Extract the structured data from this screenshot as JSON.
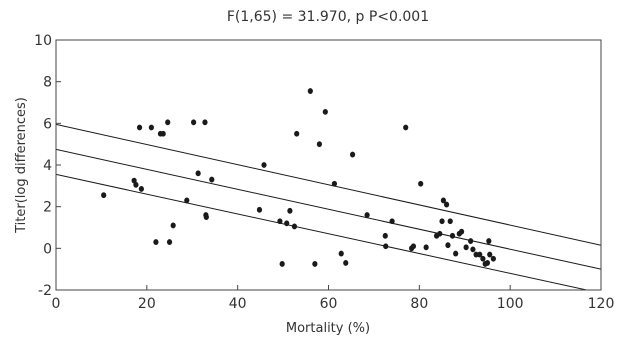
{
  "chart_data": {
    "type": "scatter",
    "title": "F(1,65) = 31.970, p P<0.001",
    "xlabel": "Mortality (%)",
    "ylabel": "Titer(log differences)",
    "xlim": [
      0,
      120
    ],
    "ylim": [
      -2,
      10
    ],
    "xticks": [
      0,
      20,
      40,
      60,
      80,
      100,
      120
    ],
    "yticks": [
      -2,
      0,
      2,
      4,
      6,
      8,
      10
    ],
    "grid": false,
    "legend": "none",
    "colors": {
      "points": "#1a1a1a",
      "lines": "#1a1a1a",
      "axes": "#444444"
    },
    "points": [
      [
        10.5,
        2.55
      ],
      [
        17.2,
        3.25
      ],
      [
        17.6,
        3.05
      ],
      [
        18.4,
        5.8
      ],
      [
        18.8,
        2.85
      ],
      [
        21.0,
        5.8
      ],
      [
        22.0,
        0.3
      ],
      [
        23.0,
        5.5
      ],
      [
        23.6,
        5.5
      ],
      [
        24.6,
        6.05
      ],
      [
        25.0,
        0.3
      ],
      [
        25.8,
        1.1
      ],
      [
        28.8,
        2.3
      ],
      [
        30.3,
        6.05
      ],
      [
        31.3,
        3.6
      ],
      [
        32.8,
        6.05
      ],
      [
        33.0,
        1.6
      ],
      [
        33.1,
        1.5
      ],
      [
        34.3,
        3.3
      ],
      [
        44.8,
        1.85
      ],
      [
        45.8,
        4.0
      ],
      [
        49.3,
        1.3
      ],
      [
        49.8,
        -0.75
      ],
      [
        50.8,
        1.2
      ],
      [
        51.5,
        1.8
      ],
      [
        52.5,
        1.05
      ],
      [
        53.0,
        5.5
      ],
      [
        56.0,
        7.55
      ],
      [
        57.0,
        -0.75
      ],
      [
        58.0,
        5.0
      ],
      [
        59.3,
        6.55
      ],
      [
        61.3,
        3.1
      ],
      [
        62.8,
        -0.25
      ],
      [
        63.8,
        -0.7
      ],
      [
        65.3,
        4.5
      ],
      [
        68.5,
        1.6
      ],
      [
        72.5,
        0.6
      ],
      [
        72.6,
        0.1
      ],
      [
        74.0,
        1.3
      ],
      [
        77.0,
        5.8
      ],
      [
        78.3,
        0.0
      ],
      [
        78.7,
        0.1
      ],
      [
        80.3,
        3.1
      ],
      [
        81.5,
        0.05
      ],
      [
        83.8,
        0.6
      ],
      [
        84.5,
        0.7
      ],
      [
        85.0,
        1.3
      ],
      [
        85.3,
        2.3
      ],
      [
        86.0,
        2.1
      ],
      [
        86.3,
        0.15
      ],
      [
        86.8,
        1.3
      ],
      [
        87.3,
        0.6
      ],
      [
        88.0,
        -0.25
      ],
      [
        88.8,
        0.7
      ],
      [
        89.3,
        0.8
      ],
      [
        90.3,
        0.05
      ],
      [
        91.3,
        0.35
      ],
      [
        91.8,
        -0.05
      ],
      [
        92.5,
        -0.3
      ],
      [
        93.3,
        -0.3
      ],
      [
        94.0,
        -0.5
      ],
      [
        94.5,
        -0.75
      ],
      [
        95.0,
        -0.7
      ],
      [
        95.3,
        0.35
      ],
      [
        95.5,
        -0.3
      ],
      [
        96.3,
        -0.5
      ]
    ],
    "fit_lines": [
      {
        "x": [
          0,
          120
        ],
        "y": [
          4.75,
          -1.0
        ]
      },
      {
        "x": [
          0,
          120
        ],
        "y": [
          5.95,
          0.15
        ]
      },
      {
        "x": [
          0,
          120
        ],
        "y": [
          3.55,
          -2.15
        ]
      }
    ]
  }
}
